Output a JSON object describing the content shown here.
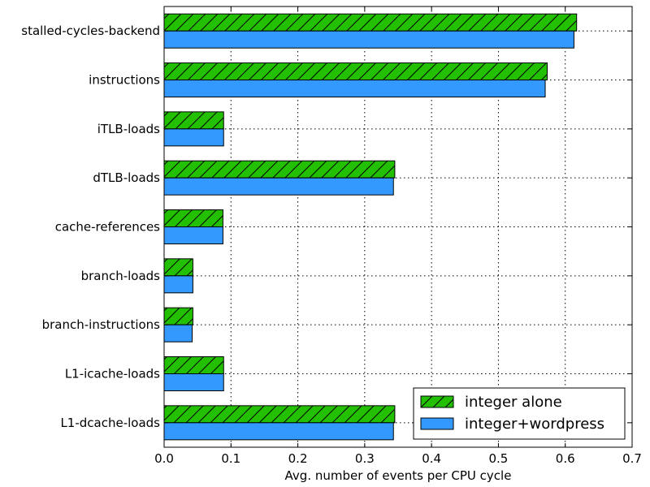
{
  "chart_data": {
    "type": "bar",
    "orientation": "horizontal",
    "title": "",
    "xlabel": "Avg. number of events per CPU cycle",
    "ylabel": "",
    "xlim": [
      0,
      0.7
    ],
    "xticks": [
      "0.0",
      "0.1",
      "0.2",
      "0.3",
      "0.4",
      "0.5",
      "0.6",
      "0.7"
    ],
    "grid": true,
    "legend_position": "bottom-right",
    "categories": [
      "stalled-cycles-backend",
      "instructions",
      "iTLB-loads",
      "dTLB-loads",
      "cache-references",
      "branch-loads",
      "branch-instructions",
      "L1-icache-loads",
      "L1-dcache-loads"
    ],
    "series": [
      {
        "name": "integer alone",
        "color": "#22c000",
        "hatch": "diagonal",
        "values": [
          0.617,
          0.573,
          0.089,
          0.345,
          0.088,
          0.043,
          0.043,
          0.089,
          0.345
        ]
      },
      {
        "name": "integer+wordpress",
        "color": "#3399ff",
        "hatch": "none",
        "values": [
          0.613,
          0.57,
          0.089,
          0.343,
          0.088,
          0.043,
          0.042,
          0.089,
          0.343
        ]
      }
    ]
  }
}
